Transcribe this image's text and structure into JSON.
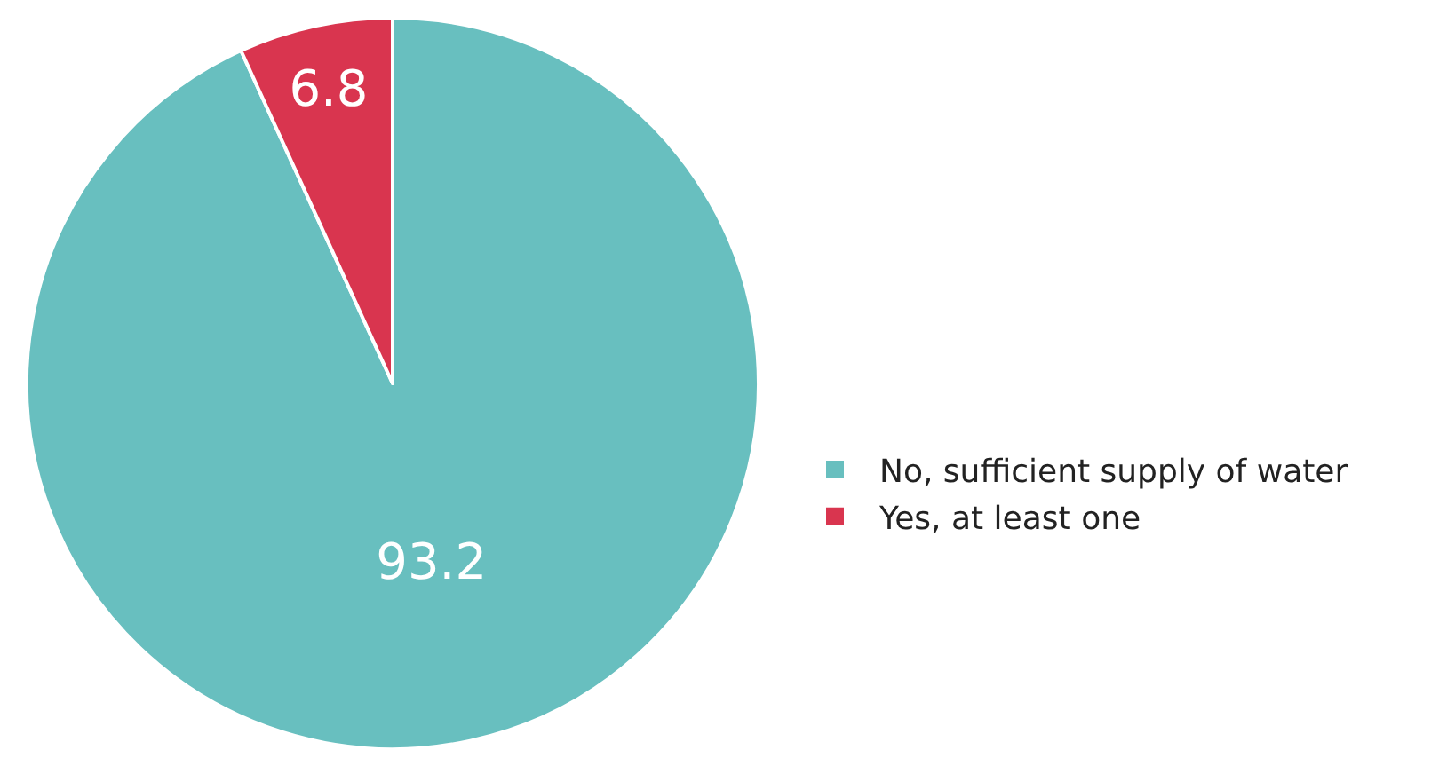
{
  "chart_data": {
    "type": "pie",
    "categories": [
      "No, sufficient supply of water",
      "Yes, at least one"
    ],
    "values": [
      93.2,
      6.8
    ],
    "colors": [
      "#68bfbf",
      "#d9354f"
    ],
    "data_labels": true,
    "legend": "right"
  }
}
